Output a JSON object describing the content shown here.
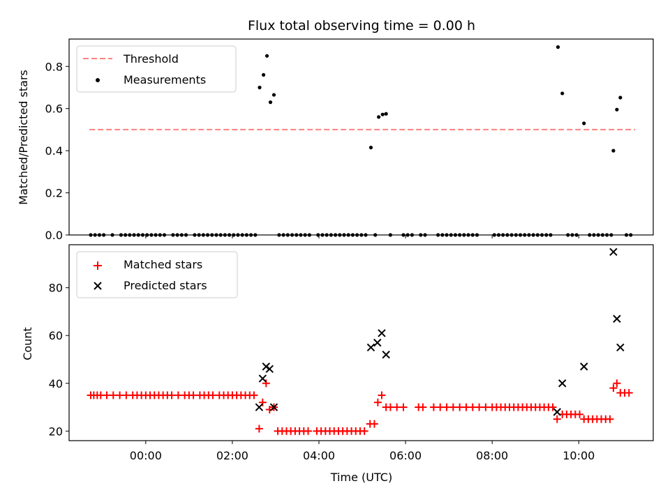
{
  "chart_data": [
    {
      "type": "scatter",
      "title": "Flux total observing time = 0.00 h",
      "xlabel": "",
      "ylabel": "Matched/Predicted stars",
      "ylim": [
        0.0,
        0.93
      ],
      "xlim_hours": [
        -1.77,
        11.72
      ],
      "yticks": [
        "0.0",
        "0.2",
        "0.4",
        "0.6",
        "0.8"
      ],
      "legend_position": "top-left",
      "threshold": {
        "name": "Threshold",
        "value": 0.5,
        "x_range_hours": [
          -1.3,
          11.3
        ],
        "color": "#ff8080",
        "style": "dashed"
      },
      "series": [
        {
          "name": "Measurements",
          "color": "#000000",
          "marker": "dot",
          "points": [
            [
              -1.27,
              0
            ],
            [
              -1.17,
              0
            ],
            [
              -1.07,
              0
            ],
            [
              -0.97,
              0
            ],
            [
              -0.77,
              0
            ],
            [
              -0.57,
              0
            ],
            [
              -0.47,
              0
            ],
            [
              -0.37,
              0
            ],
            [
              -0.27,
              0
            ],
            [
              -0.17,
              0
            ],
            [
              -0.07,
              0
            ],
            [
              0.03,
              0
            ],
            [
              0.13,
              0
            ],
            [
              0.23,
              0
            ],
            [
              0.33,
              0
            ],
            [
              0.43,
              0
            ],
            [
              0.63,
              0
            ],
            [
              0.73,
              0
            ],
            [
              0.83,
              0
            ],
            [
              0.93,
              0
            ],
            [
              1.13,
              0
            ],
            [
              1.23,
              0
            ],
            [
              1.33,
              0
            ],
            [
              1.43,
              0
            ],
            [
              1.53,
              0
            ],
            [
              1.63,
              0
            ],
            [
              1.73,
              0
            ],
            [
              1.83,
              0
            ],
            [
              1.93,
              0
            ],
            [
              2.03,
              0
            ],
            [
              2.13,
              0
            ],
            [
              2.23,
              0
            ],
            [
              2.33,
              0
            ],
            [
              2.43,
              0
            ],
            [
              2.53,
              0
            ],
            [
              2.63,
              0.7
            ],
            [
              2.72,
              0.76
            ],
            [
              2.8,
              0.85
            ],
            [
              2.88,
              0.63
            ],
            [
              2.96,
              0.665
            ],
            [
              3.08,
              0
            ],
            [
              3.18,
              0
            ],
            [
              3.28,
              0
            ],
            [
              3.38,
              0
            ],
            [
              3.48,
              0
            ],
            [
              3.58,
              0
            ],
            [
              3.68,
              0
            ],
            [
              3.78,
              0
            ],
            [
              3.98,
              0
            ],
            [
              4.08,
              0
            ],
            [
              4.18,
              0
            ],
            [
              4.28,
              0
            ],
            [
              4.38,
              0
            ],
            [
              4.48,
              0
            ],
            [
              4.58,
              0
            ],
            [
              4.68,
              0
            ],
            [
              4.78,
              0
            ],
            [
              4.88,
              0
            ],
            [
              4.98,
              0
            ],
            [
              5.08,
              0
            ],
            [
              5.2,
              0.415
            ],
            [
              5.3,
              0
            ],
            [
              5.38,
              0.56
            ],
            [
              5.47,
              0.572
            ],
            [
              5.55,
              0.575
            ],
            [
              5.65,
              0
            ],
            [
              5.95,
              0
            ],
            [
              6.05,
              0
            ],
            [
              6.15,
              0
            ],
            [
              6.35,
              0
            ],
            [
              6.45,
              0
            ],
            [
              6.75,
              0
            ],
            [
              6.85,
              0
            ],
            [
              6.95,
              0
            ],
            [
              7.05,
              0
            ],
            [
              7.15,
              0
            ],
            [
              7.25,
              0
            ],
            [
              7.35,
              0
            ],
            [
              7.45,
              0
            ],
            [
              7.55,
              0
            ],
            [
              7.65,
              0
            ],
            [
              8.05,
              0
            ],
            [
              8.15,
              0
            ],
            [
              8.25,
              0
            ],
            [
              8.35,
              0
            ],
            [
              8.45,
              0
            ],
            [
              8.55,
              0
            ],
            [
              8.65,
              0
            ],
            [
              8.75,
              0
            ],
            [
              8.85,
              0
            ],
            [
              8.95,
              0
            ],
            [
              9.05,
              0
            ],
            [
              9.15,
              0
            ],
            [
              9.25,
              0
            ],
            [
              9.35,
              0
            ],
            [
              9.52,
              0.892
            ],
            [
              9.62,
              0.672
            ],
            [
              9.75,
              0
            ],
            [
              9.85,
              0
            ],
            [
              9.95,
              0
            ],
            [
              10.12,
              0.53
            ],
            [
              10.25,
              0
            ],
            [
              10.35,
              0
            ],
            [
              10.45,
              0
            ],
            [
              10.55,
              0
            ],
            [
              10.65,
              0
            ],
            [
              10.75,
              0
            ],
            [
              10.8,
              0.4
            ],
            [
              10.88,
              0.595
            ],
            [
              10.96,
              0.652
            ],
            [
              11.1,
              0
            ],
            [
              11.2,
              0
            ]
          ]
        }
      ]
    },
    {
      "type": "scatter",
      "title": "",
      "xlabel": "Time (UTC)",
      "ylabel": "Count",
      "ylim": [
        16,
        98
      ],
      "xlim_hours": [
        -1.77,
        11.72
      ],
      "xticks": [
        "00:00",
        "02:00",
        "04:00",
        "06:00",
        "08:00",
        "10:00"
      ],
      "xtick_hours": [
        0,
        2,
        4,
        6,
        8,
        10
      ],
      "yticks": [
        "20",
        "40",
        "60",
        "80"
      ],
      "legend_position": "top-left",
      "series": [
        {
          "name": "Matched stars",
          "color": "#ff0000",
          "marker": "plus",
          "points": [
            [
              -1.27,
              35
            ],
            [
              -1.2,
              35
            ],
            [
              -1.12,
              35
            ],
            [
              -1.04,
              35
            ],
            [
              -0.9,
              35
            ],
            [
              -0.75,
              35
            ],
            [
              -0.6,
              35
            ],
            [
              -0.45,
              35
            ],
            [
              -0.3,
              35
            ],
            [
              -0.2,
              35
            ],
            [
              -0.1,
              35
            ],
            [
              0.0,
              35
            ],
            [
              0.1,
              35
            ],
            [
              0.2,
              35
            ],
            [
              0.3,
              35
            ],
            [
              0.4,
              35
            ],
            [
              0.5,
              35
            ],
            [
              0.6,
              35
            ],
            [
              0.75,
              35
            ],
            [
              0.9,
              35
            ],
            [
              1.0,
              35
            ],
            [
              1.1,
              35
            ],
            [
              1.25,
              35
            ],
            [
              1.35,
              35
            ],
            [
              1.45,
              35
            ],
            [
              1.55,
              35
            ],
            [
              1.7,
              35
            ],
            [
              1.8,
              35
            ],
            [
              1.9,
              35
            ],
            [
              2.0,
              35
            ],
            [
              2.1,
              35
            ],
            [
              2.2,
              35
            ],
            [
              2.3,
              35
            ],
            [
              2.4,
              35
            ],
            [
              2.5,
              35
            ],
            [
              2.62,
              21
            ],
            [
              2.7,
              32
            ],
            [
              2.78,
              40
            ],
            [
              2.86,
              29
            ],
            [
              2.96,
              30
            ],
            [
              3.05,
              20
            ],
            [
              3.15,
              20
            ],
            [
              3.25,
              20
            ],
            [
              3.35,
              20
            ],
            [
              3.45,
              20
            ],
            [
              3.55,
              20
            ],
            [
              3.65,
              20
            ],
            [
              3.75,
              20
            ],
            [
              3.95,
              20
            ],
            [
              4.05,
              20
            ],
            [
              4.15,
              20
            ],
            [
              4.25,
              20
            ],
            [
              4.35,
              20
            ],
            [
              4.45,
              20
            ],
            [
              4.55,
              20
            ],
            [
              4.65,
              20
            ],
            [
              4.75,
              20
            ],
            [
              4.85,
              20
            ],
            [
              4.95,
              20
            ],
            [
              5.05,
              20
            ],
            [
              5.18,
              23
            ],
            [
              5.28,
              23
            ],
            [
              5.36,
              32
            ],
            [
              5.45,
              35
            ],
            [
              5.55,
              30
            ],
            [
              5.65,
              30
            ],
            [
              5.8,
              30
            ],
            [
              5.95,
              30
            ],
            [
              6.3,
              30
            ],
            [
              6.4,
              30
            ],
            [
              6.65,
              30
            ],
            [
              6.8,
              30
            ],
            [
              6.95,
              30
            ],
            [
              7.1,
              30
            ],
            [
              7.25,
              30
            ],
            [
              7.4,
              30
            ],
            [
              7.55,
              30
            ],
            [
              7.7,
              30
            ],
            [
              7.85,
              30
            ],
            [
              8.0,
              30
            ],
            [
              8.1,
              30
            ],
            [
              8.2,
              30
            ],
            [
              8.3,
              30
            ],
            [
              8.4,
              30
            ],
            [
              8.5,
              30
            ],
            [
              8.6,
              30
            ],
            [
              8.7,
              30
            ],
            [
              8.8,
              30
            ],
            [
              8.9,
              30
            ],
            [
              9.0,
              30
            ],
            [
              9.1,
              30
            ],
            [
              9.2,
              30
            ],
            [
              9.3,
              30
            ],
            [
              9.4,
              30
            ],
            [
              9.5,
              25
            ],
            [
              9.62,
              27
            ],
            [
              9.72,
              27
            ],
            [
              9.82,
              27
            ],
            [
              9.92,
              27
            ],
            [
              10.02,
              27
            ],
            [
              10.12,
              25
            ],
            [
              10.22,
              25
            ],
            [
              10.32,
              25
            ],
            [
              10.42,
              25
            ],
            [
              10.52,
              25
            ],
            [
              10.62,
              25
            ],
            [
              10.72,
              25
            ],
            [
              10.8,
              38
            ],
            [
              10.88,
              40
            ],
            [
              10.96,
              36
            ],
            [
              11.06,
              36
            ],
            [
              11.16,
              36
            ]
          ]
        },
        {
          "name": "Predicted stars",
          "color": "#000000",
          "marker": "x",
          "points": [
            [
              2.62,
              30
            ],
            [
              2.7,
              42
            ],
            [
              2.78,
              47
            ],
            [
              2.86,
              46
            ],
            [
              2.96,
              30
            ],
            [
              5.2,
              55
            ],
            [
              5.35,
              57
            ],
            [
              5.45,
              61
            ],
            [
              5.55,
              52
            ],
            [
              9.5,
              28
            ],
            [
              9.62,
              40
            ],
            [
              10.12,
              47
            ],
            [
              10.8,
              95
            ],
            [
              10.88,
              67
            ],
            [
              10.96,
              55
            ]
          ]
        }
      ]
    }
  ]
}
